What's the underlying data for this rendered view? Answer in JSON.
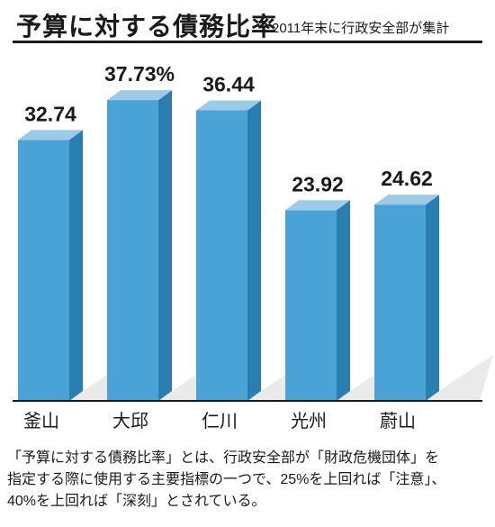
{
  "header": {
    "title": "予算に対する債務比率",
    "subtitle": "2011年末に行政安全部が集計"
  },
  "chart_data": {
    "type": "bar",
    "categories": [
      "釜山",
      "大邱",
      "仁川",
      "光州",
      "蔚山"
    ],
    "values": [
      32.74,
      37.73,
      36.44,
      23.92,
      24.62
    ],
    "value_labels": [
      "32.74",
      "37.73%",
      "36.44",
      "23.92",
      "24.62"
    ],
    "ylim": [
      0,
      40
    ],
    "grid": false,
    "bar_color": "#4aa3d6",
    "bar_top_color": "#9ccbe8",
    "bar_side_color": "#2a7fb2"
  },
  "caption": {
    "lines": [
      "「予算に対する債務比率」とは、行政安全部が「財政危機団体」を",
      "指定する際に使用する主要指標の一つで、25%を上回れば「注意」、",
      "40%を上回れば「深刻」とされている。"
    ]
  }
}
